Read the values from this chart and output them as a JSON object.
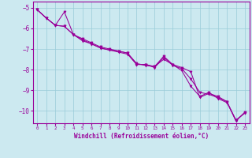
{
  "xlabel": "Windchill (Refroidissement éolien,°C)",
  "bg_color": "#cce9f0",
  "line_color": "#990099",
  "xlim": [
    -0.5,
    23.5
  ],
  "ylim": [
    -10.6,
    -4.7
  ],
  "yticks": [
    -10,
    -9,
    -8,
    -7,
    -6,
    -5
  ],
  "xticks": [
    0,
    1,
    2,
    3,
    4,
    5,
    6,
    7,
    8,
    9,
    10,
    11,
    12,
    13,
    14,
    15,
    16,
    17,
    18,
    19,
    20,
    21,
    22,
    23
  ],
  "series": [
    [
      0,
      -5.1
    ],
    [
      1,
      -5.5
    ],
    [
      2,
      -5.85
    ],
    [
      3,
      -5.2
    ],
    [
      4,
      -6.3
    ],
    [
      5,
      -6.55
    ],
    [
      6,
      -6.75
    ],
    [
      7,
      -6.95
    ],
    [
      8,
      -7.05
    ],
    [
      9,
      -7.1
    ],
    [
      10,
      -7.2
    ],
    [
      11,
      -7.75
    ],
    [
      12,
      -7.75
    ],
    [
      13,
      -7.85
    ],
    [
      14,
      -7.35
    ],
    [
      15,
      -7.75
    ],
    [
      16,
      -7.9
    ],
    [
      17,
      -8.1
    ],
    [
      18,
      -9.35
    ],
    [
      19,
      -9.15
    ],
    [
      20,
      -9.3
    ],
    [
      21,
      -9.55
    ],
    [
      22,
      -10.45
    ],
    [
      23,
      -10.1
    ]
  ],
  "series2": [
    [
      0,
      -5.1
    ],
    [
      1,
      -5.5
    ],
    [
      2,
      -5.85
    ],
    [
      3,
      -5.9
    ],
    [
      4,
      -6.3
    ],
    [
      5,
      -6.5
    ],
    [
      6,
      -6.7
    ],
    [
      7,
      -6.9
    ],
    [
      8,
      -7.0
    ],
    [
      9,
      -7.1
    ],
    [
      10,
      -7.2
    ],
    [
      11,
      -7.7
    ],
    [
      12,
      -7.8
    ],
    [
      13,
      -7.85
    ],
    [
      14,
      -7.5
    ],
    [
      15,
      -7.75
    ],
    [
      16,
      -8.05
    ],
    [
      17,
      -8.8
    ],
    [
      18,
      -9.3
    ],
    [
      19,
      -9.1
    ],
    [
      20,
      -9.4
    ],
    [
      21,
      -9.6
    ],
    [
      22,
      -10.45
    ],
    [
      23,
      -10.1
    ]
  ],
  "series3": [
    [
      0,
      -5.1
    ],
    [
      1,
      -5.5
    ],
    [
      2,
      -5.85
    ],
    [
      3,
      -5.9
    ],
    [
      4,
      -6.3
    ],
    [
      5,
      -6.6
    ],
    [
      6,
      -6.75
    ],
    [
      7,
      -6.95
    ],
    [
      8,
      -7.05
    ],
    [
      9,
      -7.15
    ],
    [
      10,
      -7.25
    ],
    [
      11,
      -7.75
    ],
    [
      12,
      -7.75
    ],
    [
      13,
      -7.9
    ],
    [
      14,
      -7.4
    ],
    [
      15,
      -7.8
    ],
    [
      16,
      -7.95
    ],
    [
      17,
      -8.45
    ],
    [
      18,
      -9.1
    ],
    [
      19,
      -9.2
    ],
    [
      20,
      -9.35
    ],
    [
      21,
      -9.55
    ],
    [
      22,
      -10.5
    ],
    [
      23,
      -10.05
    ]
  ]
}
